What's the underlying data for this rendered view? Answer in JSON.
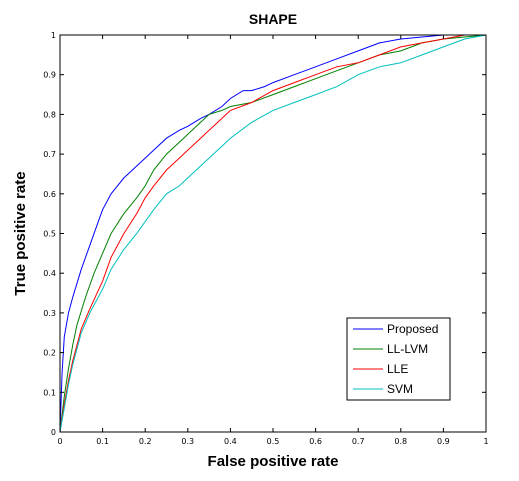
{
  "chart_data": {
    "type": "line",
    "title": "SHAPE",
    "xlabel": "False positive rate",
    "ylabel": "True positive rate",
    "xlim": [
      0,
      1
    ],
    "ylim": [
      0,
      1
    ],
    "xticks": [
      "0",
      "0.1",
      "0.2",
      "0.3",
      "0.4",
      "0.5",
      "0.6",
      "0.7",
      "0.8",
      "0.9",
      "1"
    ],
    "yticks": [
      "0",
      "0.1",
      "0.2",
      "0.3",
      "0.4",
      "0.5",
      "0.6",
      "0.7",
      "0.8",
      "0.9",
      "1"
    ],
    "grid": false,
    "legend_position": "bottom-right",
    "series": [
      {
        "name": "Proposed",
        "color": "#0000ff",
        "x": [
          0,
          0.005,
          0.01,
          0.02,
          0.03,
          0.05,
          0.07,
          0.09,
          0.1,
          0.12,
          0.15,
          0.18,
          0.2,
          0.22,
          0.25,
          0.28,
          0.3,
          0.33,
          0.35,
          0.38,
          0.4,
          0.43,
          0.45,
          0.48,
          0.5,
          0.55,
          0.6,
          0.65,
          0.7,
          0.75,
          0.8,
          0.85,
          0.9,
          0.95,
          1
        ],
        "y": [
          0,
          0.15,
          0.24,
          0.3,
          0.34,
          0.41,
          0.47,
          0.53,
          0.56,
          0.6,
          0.64,
          0.67,
          0.69,
          0.71,
          0.74,
          0.76,
          0.77,
          0.79,
          0.8,
          0.82,
          0.84,
          0.86,
          0.86,
          0.87,
          0.88,
          0.9,
          0.92,
          0.94,
          0.96,
          0.98,
          0.99,
          0.995,
          1,
          1,
          1
        ]
      },
      {
        "name": "LL-LVM",
        "color": "#008000",
        "x": [
          0,
          0.01,
          0.02,
          0.03,
          0.04,
          0.06,
          0.08,
          0.1,
          0.12,
          0.15,
          0.18,
          0.2,
          0.22,
          0.25,
          0.28,
          0.3,
          0.33,
          0.35,
          0.38,
          0.4,
          0.45,
          0.5,
          0.55,
          0.6,
          0.65,
          0.7,
          0.75,
          0.8,
          0.85,
          0.9,
          0.95,
          1
        ],
        "y": [
          0,
          0.09,
          0.16,
          0.22,
          0.27,
          0.34,
          0.4,
          0.45,
          0.5,
          0.55,
          0.59,
          0.62,
          0.66,
          0.7,
          0.73,
          0.75,
          0.78,
          0.8,
          0.81,
          0.82,
          0.83,
          0.85,
          0.87,
          0.89,
          0.91,
          0.93,
          0.95,
          0.96,
          0.98,
          0.99,
          0.995,
          1
        ]
      },
      {
        "name": "LLE",
        "color": "#ff0000",
        "x": [
          0,
          0.01,
          0.02,
          0.03,
          0.05,
          0.07,
          0.1,
          0.12,
          0.15,
          0.18,
          0.2,
          0.22,
          0.25,
          0.28,
          0.3,
          0.33,
          0.35,
          0.38,
          0.4,
          0.45,
          0.5,
          0.55,
          0.6,
          0.65,
          0.7,
          0.75,
          0.8,
          0.85,
          0.9,
          0.95,
          1
        ],
        "y": [
          0,
          0.07,
          0.13,
          0.18,
          0.26,
          0.31,
          0.38,
          0.44,
          0.5,
          0.55,
          0.59,
          0.62,
          0.66,
          0.69,
          0.71,
          0.74,
          0.76,
          0.79,
          0.81,
          0.83,
          0.86,
          0.88,
          0.9,
          0.92,
          0.93,
          0.95,
          0.97,
          0.98,
          0.99,
          1,
          1
        ]
      },
      {
        "name": "SVM",
        "color": "#00bfbf",
        "x": [
          0,
          0.01,
          0.02,
          0.03,
          0.05,
          0.07,
          0.1,
          0.12,
          0.15,
          0.18,
          0.2,
          0.22,
          0.25,
          0.28,
          0.3,
          0.33,
          0.35,
          0.38,
          0.4,
          0.45,
          0.5,
          0.55,
          0.6,
          0.65,
          0.7,
          0.75,
          0.8,
          0.85,
          0.9,
          0.95,
          1
        ],
        "y": [
          0,
          0.06,
          0.12,
          0.17,
          0.25,
          0.3,
          0.36,
          0.41,
          0.46,
          0.5,
          0.53,
          0.56,
          0.6,
          0.62,
          0.64,
          0.67,
          0.69,
          0.72,
          0.74,
          0.78,
          0.81,
          0.83,
          0.85,
          0.87,
          0.9,
          0.92,
          0.93,
          0.95,
          0.97,
          0.99,
          1
        ]
      }
    ]
  }
}
